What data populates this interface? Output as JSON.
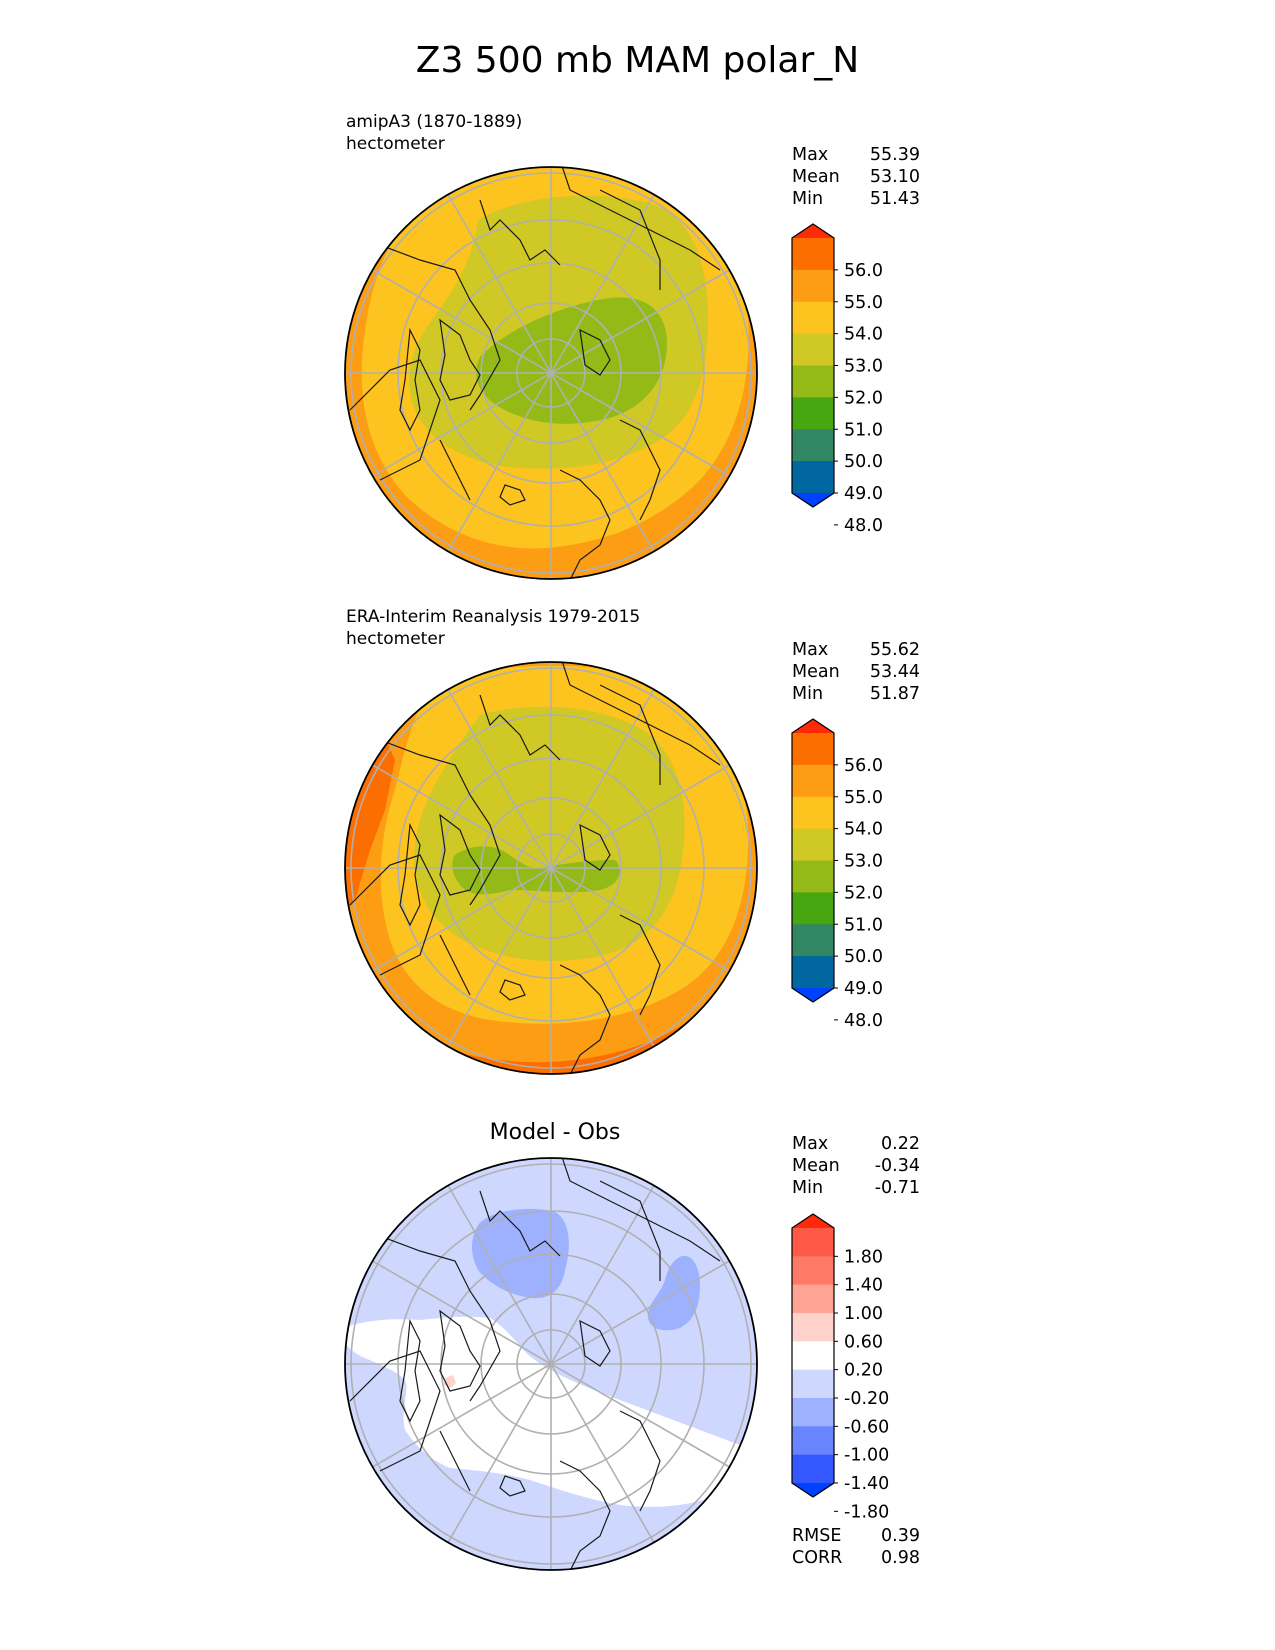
{
  "title": "Z3 500 mb MAM polar_N",
  "colors": {
    "abs_levels": [
      "#0040ff",
      "#0067a0",
      "#318763",
      "#48a710",
      "#94ba17",
      "#d0c824",
      "#fdc31f",
      "#fd9d14",
      "#fd6e00",
      "#ff2a0a"
    ],
    "diff_levels": [
      "#0040ff",
      "#3358ff",
      "#6885ff",
      "#9eb1ff",
      "#ced8ff",
      "#ffffff",
      "#ffd2cc",
      "#ffa394",
      "#ff7a66",
      "#ff5a47",
      "#ff2a0a"
    ],
    "map_grid": "#b0b0b0",
    "coast": "#1a1a1a"
  },
  "panels": [
    {
      "subtitle_line1": "amipA3 (1870-1889)",
      "subtitle_line2": "hectometer",
      "stats": {
        "max_label": "Max",
        "max": "55.39",
        "mean_label": "Mean",
        "mean": "53.10",
        "min_label": "Min",
        "min": "51.43"
      },
      "colorbar_ticks": [
        "56.0",
        "55.0",
        "54.0",
        "53.0",
        "52.0",
        "51.0",
        "50.0",
        "49.0",
        "48.0"
      ]
    },
    {
      "subtitle_line1": "ERA-Interim Reanalysis 1979-2015",
      "subtitle_line2": "hectometer",
      "stats": {
        "max_label": "Max",
        "max": "55.62",
        "mean_label": "Mean",
        "mean": "53.44",
        "min_label": "Min",
        "min": "51.87"
      },
      "colorbar_ticks": [
        "56.0",
        "55.0",
        "54.0",
        "53.0",
        "52.0",
        "51.0",
        "50.0",
        "49.0",
        "48.0"
      ]
    },
    {
      "title": "Model - Obs",
      "stats": {
        "max_label": "Max",
        "max": "0.22",
        "mean_label": "Mean",
        "mean": "-0.34",
        "min_label": "Min",
        "min": "-0.71"
      },
      "colorbar_ticks": [
        "1.80",
        "1.40",
        "1.00",
        "0.60",
        "0.20",
        "-0.20",
        "-0.60",
        "-1.00",
        "-1.40",
        "-1.80"
      ],
      "metrics": {
        "rmse_label": "RMSE",
        "rmse": "0.39",
        "corr_label": "CORR",
        "corr": "0.98"
      }
    }
  ],
  "chart_data": [
    {
      "type": "heatmap",
      "projection": "north polar stereographic",
      "title": "amipA3 (1870-1889)",
      "units": "hectometer",
      "levels": [
        48,
        49,
        50,
        51,
        52,
        53,
        54,
        55,
        56
      ],
      "extend": "both",
      "summary": {
        "max": 55.39,
        "mean": 53.1,
        "min": 51.43
      }
    },
    {
      "type": "heatmap",
      "projection": "north polar stereographic",
      "title": "ERA-Interim Reanalysis 1979-2015",
      "units": "hectometer",
      "levels": [
        48,
        49,
        50,
        51,
        52,
        53,
        54,
        55,
        56
      ],
      "extend": "both",
      "summary": {
        "max": 55.62,
        "mean": 53.44,
        "min": 51.87
      }
    },
    {
      "type": "heatmap",
      "projection": "north polar stereographic",
      "title": "Model - Obs",
      "levels": [
        -1.8,
        -1.4,
        -1.0,
        -0.6,
        -0.2,
        0.2,
        0.6,
        1.0,
        1.4,
        1.8
      ],
      "extend": "both",
      "summary": {
        "max": 0.22,
        "mean": -0.34,
        "min": -0.71,
        "rmse": 0.39,
        "corr": 0.98
      }
    }
  ]
}
